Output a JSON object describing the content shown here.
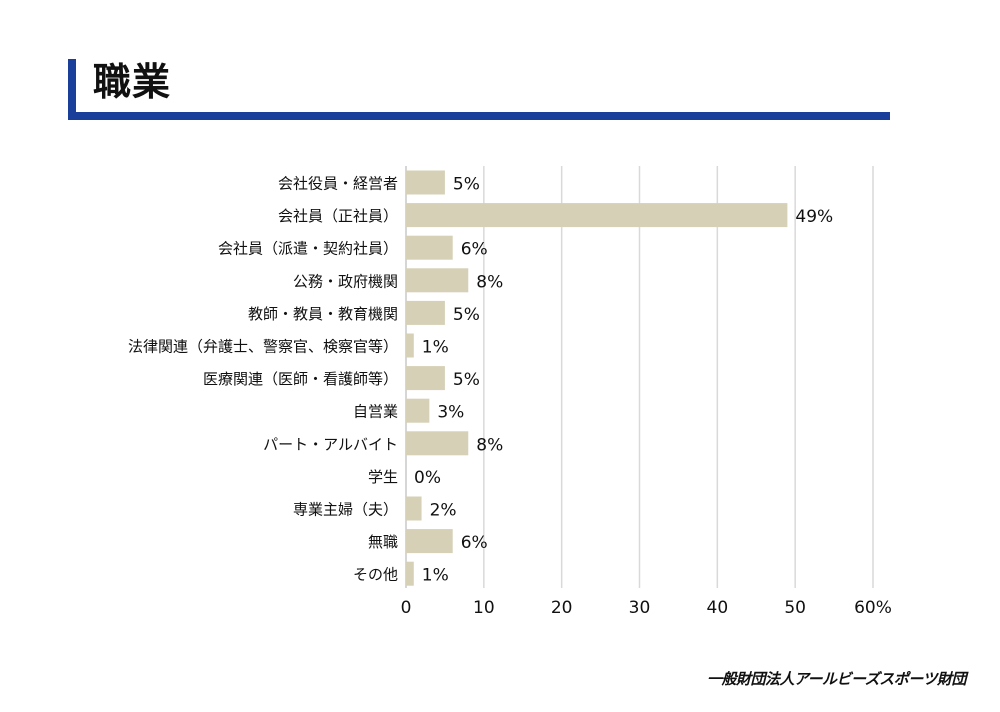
{
  "header": {
    "title": "職業"
  },
  "footer": {
    "org": "一般財団法人アールビーズスポーツ財団"
  },
  "chart_data": {
    "type": "bar",
    "orientation": "horizontal",
    "title": "",
    "xlabel": "",
    "ylabel": "",
    "xlim": [
      0,
      60
    ],
    "x_ticks": [
      "0",
      "10",
      "20",
      "30",
      "40",
      "50",
      "60%"
    ],
    "grid": true,
    "bar_color": "#d6d0b6",
    "grid_color": "#d9d9d9",
    "categories": [
      "会社役員・経営者",
      "会社員（正社員）",
      "会社員（派遣・契約社員）",
      "公務・政府機関",
      "教師・教員・教育機関",
      "法律関連（弁護士、警察官、検察官等）",
      "医療関連（医師・看護師等）",
      "自営業",
      "パート・アルバイト",
      "学生",
      "専業主婦（夫）",
      "無職",
      "その他"
    ],
    "values": [
      5,
      49,
      6,
      8,
      5,
      1,
      5,
      3,
      8,
      0,
      2,
      6,
      1
    ],
    "value_labels": [
      "5%",
      "49%",
      "6%",
      "8%",
      "5%",
      "1%",
      "5%",
      "3%",
      "8%",
      "0%",
      "2%",
      "6%",
      "1%"
    ]
  }
}
